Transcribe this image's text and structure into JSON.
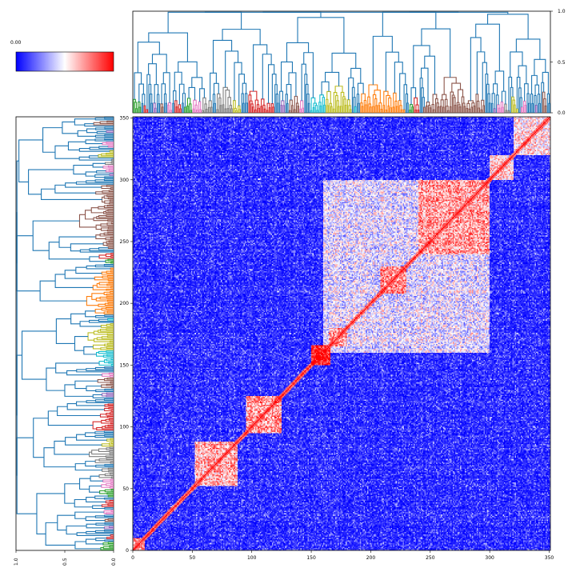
{
  "chart_data": [
    {
      "type": "heatmap",
      "title": "",
      "xlabel": "",
      "ylabel": "",
      "xlim": [
        0,
        351
      ],
      "ylim": [
        0,
        351
      ],
      "x_ticks": [
        "0",
        "50",
        "100",
        "150",
        "200",
        "250",
        "300",
        "350"
      ],
      "y_ticks": [
        "0",
        "50",
        "100",
        "150",
        "200",
        "250",
        "300",
        "350"
      ],
      "diagonal_value": 1.0,
      "high_similarity_blocks": [
        {
          "start": 0,
          "end": 10,
          "level": 0.6
        },
        {
          "start": 52,
          "end": 88,
          "level": 0.55
        },
        {
          "start": 95,
          "end": 125,
          "level": 0.6
        },
        {
          "start": 150,
          "end": 166,
          "level": 0.85
        },
        {
          "start": 160,
          "end": 300,
          "level": 0.35
        },
        {
          "start": 165,
          "end": 180,
          "level": 0.6
        },
        {
          "start": 208,
          "end": 230,
          "level": 0.65
        },
        {
          "start": 240,
          "end": 300,
          "level": 0.6
        },
        {
          "start": 300,
          "end": 320,
          "level": 0.5
        },
        {
          "start": 320,
          "end": 351,
          "level": 0.45
        }
      ]
    },
    {
      "type": "dendrogram",
      "orientation": "top",
      "value_ticks": [
        "0.0",
        "0.5",
        "1.0"
      ],
      "clusters": [
        {
          "color": "#2ca02c",
          "start": 0,
          "end": 8
        },
        {
          "color": "#d62728",
          "start": 8,
          "end": 16
        },
        {
          "color": "#9467bd",
          "start": 16,
          "end": 22
        },
        {
          "color": "#8c564b",
          "start": 22,
          "end": 28
        },
        {
          "color": "#e377c2",
          "start": 28,
          "end": 34
        },
        {
          "color": "#d62728",
          "start": 34,
          "end": 42
        },
        {
          "color": "#2ca02c",
          "start": 42,
          "end": 50
        },
        {
          "color": "#e377c2",
          "start": 50,
          "end": 58
        },
        {
          "color": "#7f7f7f",
          "start": 58,
          "end": 68
        },
        {
          "color": "#7f7f7f",
          "start": 70,
          "end": 84
        },
        {
          "color": "#bcbd22",
          "start": 84,
          "end": 92
        },
        {
          "color": "#d62728",
          "start": 96,
          "end": 122
        },
        {
          "color": "#9467bd",
          "start": 124,
          "end": 130
        },
        {
          "color": "#8c564b",
          "start": 130,
          "end": 140
        },
        {
          "color": "#e377c2",
          "start": 140,
          "end": 148
        },
        {
          "color": "#17becf",
          "start": 148,
          "end": 162
        },
        {
          "color": "#bcbd22",
          "start": 162,
          "end": 186
        },
        {
          "color": "#17becf",
          "start": 186,
          "end": 190
        },
        {
          "color": "#ff7f0e",
          "start": 190,
          "end": 230
        },
        {
          "color": "#2ca02c",
          "start": 232,
          "end": 236
        },
        {
          "color": "#d62728",
          "start": 236,
          "end": 242
        },
        {
          "color": "#8c564b",
          "start": 244,
          "end": 298
        },
        {
          "color": "#9467bd",
          "start": 302,
          "end": 306
        },
        {
          "color": "#e377c2",
          "start": 306,
          "end": 312
        },
        {
          "color": "#7f7f7f",
          "start": 312,
          "end": 318
        },
        {
          "color": "#bcbd22",
          "start": 318,
          "end": 324
        },
        {
          "color": "#e377c2",
          "start": 326,
          "end": 332
        },
        {
          "color": "#9467bd",
          "start": 338,
          "end": 342
        },
        {
          "color": "#8c564b",
          "start": 344,
          "end": 348
        }
      ]
    },
    {
      "type": "dendrogram",
      "orientation": "left",
      "value_ticks": [
        "1.0",
        "0.5",
        "0.0"
      ],
      "mirrors": "top"
    }
  ],
  "colorbar": {
    "tick_label": "0.00",
    "colors": [
      "#0000ff",
      "#ffffff",
      "#ff0000"
    ]
  },
  "link_color": "#1f77b4"
}
